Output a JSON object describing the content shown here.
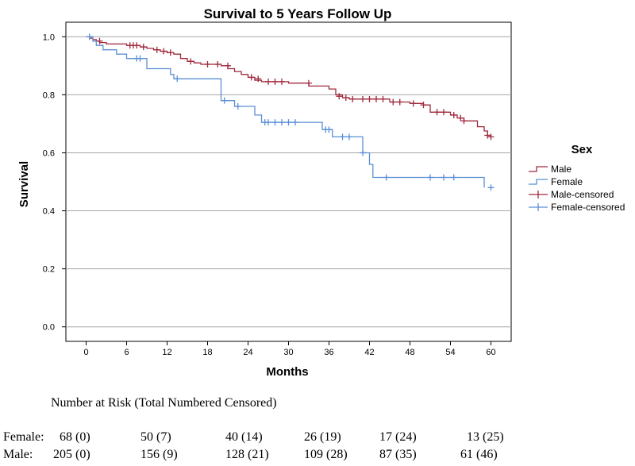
{
  "chart_data": {
    "type": "line",
    "subtype": "kaplan-meier-step",
    "title": "Survival to 5 Years Follow Up",
    "xlabel": "Months",
    "ylabel": "Survival",
    "xlim": [
      -3,
      63
    ],
    "ylim": [
      -0.05,
      1.05
    ],
    "xticks": [
      0,
      6,
      12,
      18,
      24,
      30,
      36,
      42,
      48,
      54,
      60
    ],
    "yticks": [
      0.0,
      0.2,
      0.4,
      0.6,
      0.8,
      1.0
    ],
    "ytick_labels": [
      "0.0",
      "0.2",
      "0.4",
      "0.6",
      "0.8",
      "1.0"
    ],
    "grid": "horizontal",
    "legend": {
      "title": "Sex",
      "position": "right",
      "entries": [
        "Male",
        "Female",
        "Male-censored",
        "Female-censored"
      ]
    },
    "series": [
      {
        "name": "Male",
        "color": "#a0283c",
        "steps": [
          [
            0,
            1.0
          ],
          [
            0.5,
            0.995
          ],
          [
            1,
            0.99
          ],
          [
            1.5,
            0.985
          ],
          [
            2,
            0.98
          ],
          [
            3,
            0.975
          ],
          [
            6,
            0.97
          ],
          [
            8,
            0.965
          ],
          [
            9,
            0.96
          ],
          [
            10,
            0.955
          ],
          [
            11,
            0.95
          ],
          [
            12,
            0.945
          ],
          [
            13,
            0.94
          ],
          [
            14,
            0.925
          ],
          [
            15,
            0.915
          ],
          [
            16,
            0.91
          ],
          [
            17,
            0.905
          ],
          [
            20,
            0.9
          ],
          [
            21,
            0.89
          ],
          [
            22,
            0.88
          ],
          [
            23,
            0.87
          ],
          [
            24,
            0.86
          ],
          [
            25,
            0.85
          ],
          [
            26,
            0.845
          ],
          [
            30,
            0.84
          ],
          [
            33,
            0.83
          ],
          [
            36,
            0.82
          ],
          [
            37,
            0.8
          ],
          [
            38,
            0.79
          ],
          [
            39,
            0.785
          ],
          [
            45,
            0.775
          ],
          [
            48,
            0.77
          ],
          [
            50,
            0.765
          ],
          [
            51,
            0.74
          ],
          [
            54,
            0.73
          ],
          [
            55,
            0.72
          ],
          [
            56,
            0.71
          ],
          [
            58,
            0.69
          ],
          [
            59,
            0.675
          ],
          [
            59.5,
            0.66
          ],
          [
            60,
            0.655
          ]
        ],
        "censored": [
          [
            2,
            0.985
          ],
          [
            6.5,
            0.97
          ],
          [
            7,
            0.97
          ],
          [
            7.5,
            0.97
          ],
          [
            8.5,
            0.965
          ],
          [
            10.5,
            0.955
          ],
          [
            11.5,
            0.95
          ],
          [
            12.5,
            0.945
          ],
          [
            15.5,
            0.915
          ],
          [
            18,
            0.905
          ],
          [
            19.5,
            0.905
          ],
          [
            21,
            0.9
          ],
          [
            24.5,
            0.86
          ],
          [
            25.5,
            0.855
          ],
          [
            27,
            0.845
          ],
          [
            28,
            0.845
          ],
          [
            29,
            0.845
          ],
          [
            33,
            0.84
          ],
          [
            37.5,
            0.795
          ],
          [
            38.5,
            0.79
          ],
          [
            39.5,
            0.785
          ],
          [
            41,
            0.785
          ],
          [
            42,
            0.785
          ],
          [
            43,
            0.785
          ],
          [
            44,
            0.785
          ],
          [
            45.5,
            0.775
          ],
          [
            46.5,
            0.775
          ],
          [
            48.5,
            0.77
          ],
          [
            50,
            0.765
          ],
          [
            52,
            0.74
          ],
          [
            53,
            0.74
          ],
          [
            54.5,
            0.73
          ],
          [
            55.5,
            0.72
          ],
          [
            56,
            0.71
          ],
          [
            59.5,
            0.66
          ],
          [
            60,
            0.655
          ]
        ]
      },
      {
        "name": "Female",
        "color": "#5b8fd6",
        "steps": [
          [
            0,
            1.0
          ],
          [
            1,
            0.985
          ],
          [
            1.5,
            0.97
          ],
          [
            2.5,
            0.955
          ],
          [
            4.5,
            0.94
          ],
          [
            6,
            0.925
          ],
          [
            9,
            0.89
          ],
          [
            12.5,
            0.87
          ],
          [
            13,
            0.855
          ],
          [
            20,
            0.78
          ],
          [
            22,
            0.76
          ],
          [
            25,
            0.73
          ],
          [
            26,
            0.705
          ],
          [
            35,
            0.68
          ],
          [
            36.5,
            0.655
          ],
          [
            41,
            0.6
          ],
          [
            42,
            0.56
          ],
          [
            42.5,
            0.515
          ],
          [
            59,
            0.48
          ]
        ],
        "censored": [
          [
            0.5,
            1.0
          ],
          [
            7.5,
            0.925
          ],
          [
            8,
            0.925
          ],
          [
            13.5,
            0.855
          ],
          [
            20.5,
            0.78
          ],
          [
            22.5,
            0.76
          ],
          [
            26.5,
            0.705
          ],
          [
            27,
            0.705
          ],
          [
            28,
            0.705
          ],
          [
            29,
            0.705
          ],
          [
            30,
            0.705
          ],
          [
            31,
            0.705
          ],
          [
            35.5,
            0.68
          ],
          [
            36,
            0.68
          ],
          [
            38,
            0.655
          ],
          [
            39,
            0.655
          ],
          [
            41,
            0.6
          ],
          [
            44.5,
            0.515
          ],
          [
            51,
            0.515
          ],
          [
            53,
            0.515
          ],
          [
            54.5,
            0.515
          ],
          [
            60,
            0.48
          ]
        ]
      }
    ]
  },
  "risk_table": {
    "header": "Number at Risk (Total Numbered Censored)",
    "rows": [
      {
        "label": "Female:",
        "values": [
          "68 (0)",
          "50 (7)",
          "40 (14)",
          "26 (19)",
          "17 (24)",
          "13 (25)"
        ]
      },
      {
        "label": "Male:",
        "values": [
          "205 (0)",
          "156 (9)",
          "128 (21)",
          "109 (28)",
          "87 (35)",
          "61 (46)"
        ]
      }
    ]
  }
}
